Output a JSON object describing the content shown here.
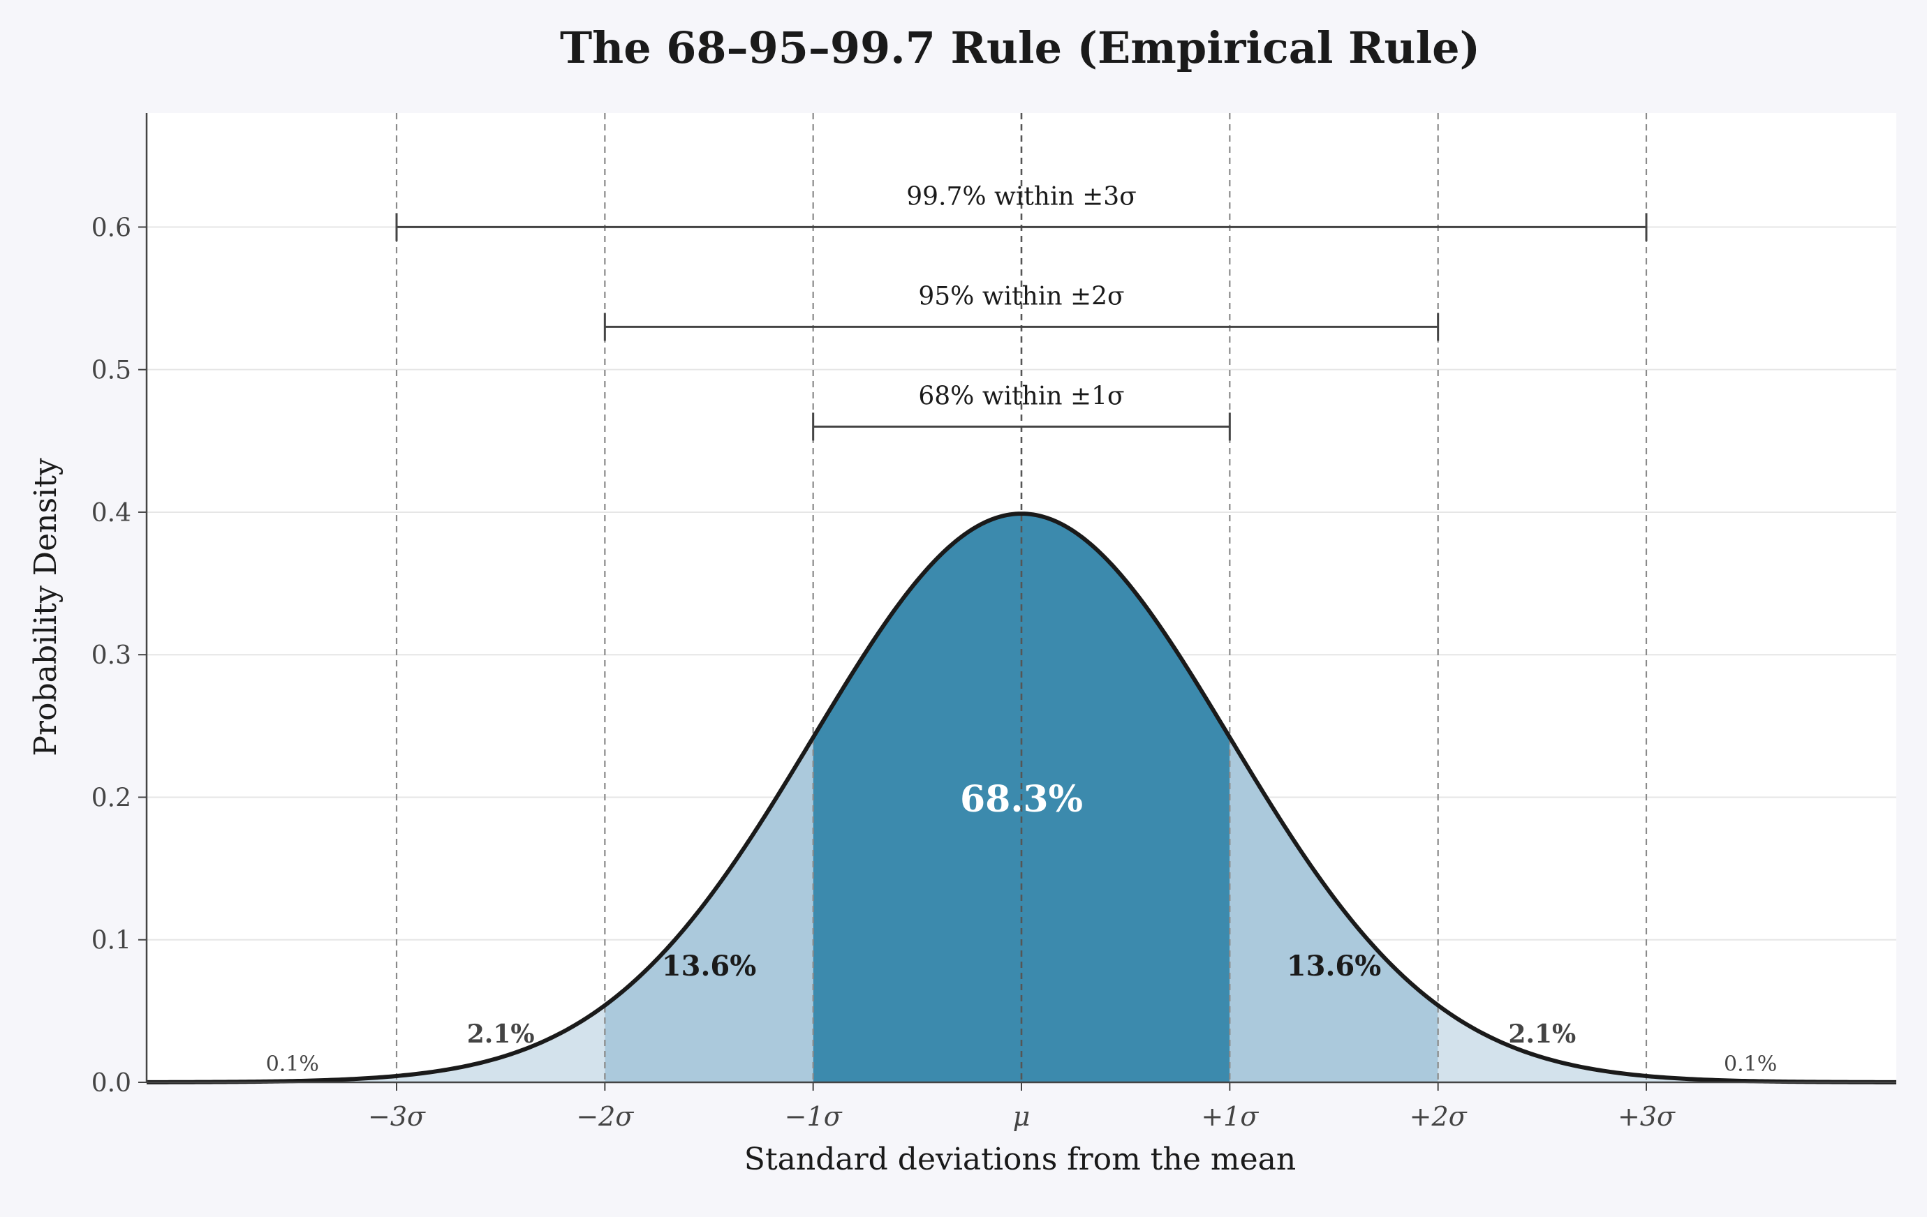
{
  "chart_data": {
    "type": "area",
    "title": "The 68–95–99.7 Rule (Empirical Rule)",
    "xlabel": "Standard deviations from the mean",
    "ylabel": "Probability Density",
    "xlim": [
      -4.2,
      4.2
    ],
    "ylim": [
      0,
      0.68
    ],
    "grid": true,
    "distribution": {
      "name": "standard normal",
      "mean": 0,
      "sd": 1
    },
    "y_ticks": [
      {
        "value": 0.0,
        "label": "0.0"
      },
      {
        "value": 0.1,
        "label": "0.1"
      },
      {
        "value": 0.2,
        "label": "0.2"
      },
      {
        "value": 0.3,
        "label": "0.3"
      },
      {
        "value": 0.4,
        "label": "0.4"
      },
      {
        "value": 0.5,
        "label": "0.5"
      },
      {
        "value": 0.6,
        "label": "0.6"
      }
    ],
    "x_ticks": [
      {
        "value": -3,
        "label": "−3σ"
      },
      {
        "value": -2,
        "label": "−2σ"
      },
      {
        "value": -1,
        "label": "−1σ"
      },
      {
        "value": 0,
        "label": "μ"
      },
      {
        "value": 1,
        "label": "+1σ"
      },
      {
        "value": 2,
        "label": "+2σ"
      },
      {
        "value": 3,
        "label": "+3σ"
      }
    ],
    "sigma_lines": [
      -3,
      -2,
      -1,
      0,
      1,
      2,
      3
    ],
    "regions": [
      {
        "from": -4.2,
        "to": -2,
        "color": "#d3e2ec",
        "label": "0.1%",
        "label_x": -3.5,
        "label_y": 0.008,
        "label_style": "small"
      },
      {
        "from": -2,
        "to": -1,
        "color": "#abc9dc",
        "label": "13.6%",
        "label_x": -1.5,
        "label_y": 0.075,
        "label_style": "medium"
      },
      {
        "from": -1,
        "to": 1,
        "color": "#3c8aad",
        "label": "68.3%",
        "label_x": 0,
        "label_y": 0.19,
        "label_style": "center"
      },
      {
        "from": 1,
        "to": 2,
        "color": "#abc9dc",
        "label": "13.6%",
        "label_x": 1.5,
        "label_y": 0.075,
        "label_style": "medium"
      },
      {
        "from": 2,
        "to": 4.2,
        "color": "#d3e2ec",
        "label": "0.1%",
        "label_x": 3.5,
        "label_y": 0.008,
        "label_style": "small"
      }
    ],
    "extra_labels": [
      {
        "text": "2.1%",
        "x": -2.5,
        "y": 0.028
      },
      {
        "text": "2.1%",
        "x": 2.5,
        "y": 0.028
      }
    ],
    "brackets": [
      {
        "from": -1,
        "to": 1,
        "y": 0.46,
        "label": "68% within ±1σ"
      },
      {
        "from": -2,
        "to": 2,
        "y": 0.53,
        "label": "95% within ±2σ"
      },
      {
        "from": -3,
        "to": 3,
        "y": 0.6,
        "label": "99.7% within ±3σ"
      }
    ],
    "colors": {
      "curve": "#1a1a1a",
      "axis": "#444444",
      "grid": "#e6e6e6",
      "sigma_line": "#8a8a8a",
      "mean_line": "#555555",
      "bracket": "#444444",
      "center_label": "#ffffff",
      "tick_label": "#444444",
      "background": "#f6f6fa",
      "plot_background": "#ffffff"
    }
  }
}
